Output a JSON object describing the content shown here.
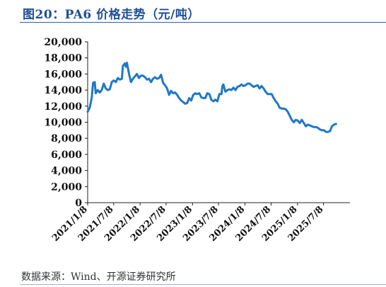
{
  "figure": {
    "title": "图20：PA6 价格走势（元/吨）",
    "source": "数据来源：Wind、开源证券研究所"
  },
  "colors": {
    "line": "#1f77c8",
    "title": "#1f4e96",
    "axis": "#222222"
  },
  "chart_data": {
    "type": "line",
    "title": "",
    "xlabel": "",
    "ylabel": "",
    "ylim": [
      0,
      20000
    ],
    "yticks": [
      0,
      2000,
      4000,
      6000,
      8000,
      10000,
      12000,
      14000,
      16000,
      18000,
      20000
    ],
    "ytick_labels": [
      "0",
      "2,000",
      "4,000",
      "6,000",
      "8,000",
      "10,000",
      "12,000",
      "14,000",
      "16,000",
      "18,000",
      "20,000"
    ],
    "x_range": [
      "2021-01-08",
      "2026-01-08"
    ],
    "xtick_labels": [
      "2021/1/8",
      "2021/7/8",
      "2022/1/8",
      "2022/7/8",
      "2023/1/8",
      "2023/7/8",
      "2024/1/8",
      "2024/7/8",
      "2025/1/8",
      "2025/7/8"
    ],
    "xtick_dates": [
      "2021-01-08",
      "2021-07-08",
      "2022-01-08",
      "2022-07-08",
      "2023-01-08",
      "2023-07-08",
      "2024-01-08",
      "2024-07-08",
      "2025-01-08",
      "2025-07-08"
    ],
    "grid": false,
    "legend": "none",
    "series": [
      {
        "points": [
          [
            "2021-01-08",
            11300
          ],
          [
            "2021-01-22",
            11800
          ],
          [
            "2021-02-05",
            13000
          ],
          [
            "2021-02-15",
            14900
          ],
          [
            "2021-02-26",
            15000
          ],
          [
            "2021-03-05",
            13600
          ],
          [
            "2021-03-19",
            14000
          ],
          [
            "2021-04-02",
            13700
          ],
          [
            "2021-04-16",
            14000
          ],
          [
            "2021-04-30",
            14800
          ],
          [
            "2021-05-14",
            14200
          ],
          [
            "2021-05-28",
            14000
          ],
          [
            "2021-06-11",
            14100
          ],
          [
            "2021-06-25",
            15000
          ],
          [
            "2021-07-09",
            15200
          ],
          [
            "2021-07-23",
            15000
          ],
          [
            "2021-08-06",
            15500
          ],
          [
            "2021-08-20",
            15300
          ],
          [
            "2021-09-03",
            15400
          ],
          [
            "2021-09-10",
            17000
          ],
          [
            "2021-09-24",
            17300
          ],
          [
            "2021-10-01",
            16900
          ],
          [
            "2021-10-08",
            17400
          ],
          [
            "2021-10-22",
            16100
          ],
          [
            "2021-11-05",
            15000
          ],
          [
            "2021-11-19",
            15400
          ],
          [
            "2021-12-03",
            15700
          ],
          [
            "2021-12-17",
            16000
          ],
          [
            "2021-12-31",
            15500
          ],
          [
            "2022-01-14",
            15800
          ],
          [
            "2022-01-28",
            15800
          ],
          [
            "2022-02-11",
            15600
          ],
          [
            "2022-02-25",
            15300
          ],
          [
            "2022-03-11",
            15400
          ],
          [
            "2022-03-25",
            15000
          ],
          [
            "2022-04-08",
            15400
          ],
          [
            "2022-04-22",
            15600
          ],
          [
            "2022-05-06",
            15400
          ],
          [
            "2022-05-20",
            15500
          ],
          [
            "2022-06-03",
            15900
          ],
          [
            "2022-06-17",
            14900
          ],
          [
            "2022-07-01",
            14600
          ],
          [
            "2022-07-15",
            14200
          ],
          [
            "2022-07-29",
            13400
          ],
          [
            "2022-08-12",
            13900
          ],
          [
            "2022-08-26",
            13600
          ],
          [
            "2022-09-09",
            13700
          ],
          [
            "2022-09-23",
            13400
          ],
          [
            "2022-10-07",
            13000
          ],
          [
            "2022-10-21",
            12700
          ],
          [
            "2022-11-04",
            12500
          ],
          [
            "2022-11-18",
            12300
          ],
          [
            "2022-12-02",
            12400
          ],
          [
            "2022-12-16",
            13000
          ],
          [
            "2022-12-30",
            12700
          ],
          [
            "2023-01-13",
            13400
          ],
          [
            "2023-01-27",
            13600
          ],
          [
            "2023-02-10",
            13500
          ],
          [
            "2023-02-24",
            13600
          ],
          [
            "2023-03-10",
            13100
          ],
          [
            "2023-03-24",
            13000
          ],
          [
            "2023-04-07",
            13000
          ],
          [
            "2023-04-21",
            13600
          ],
          [
            "2023-05-05",
            13500
          ],
          [
            "2023-05-19",
            12800
          ],
          [
            "2023-06-02",
            12600
          ],
          [
            "2023-06-16",
            12800
          ],
          [
            "2023-06-30",
            12600
          ],
          [
            "2023-07-14",
            13500
          ],
          [
            "2023-07-28",
            13500
          ],
          [
            "2023-08-04",
            14500
          ],
          [
            "2023-08-11",
            14700
          ],
          [
            "2023-08-25",
            13800
          ],
          [
            "2023-09-08",
            14000
          ],
          [
            "2023-09-22",
            14100
          ],
          [
            "2023-10-06",
            14000
          ],
          [
            "2023-10-20",
            14300
          ],
          [
            "2023-11-03",
            14000
          ],
          [
            "2023-11-17",
            14400
          ],
          [
            "2023-12-01",
            14500
          ],
          [
            "2023-12-15",
            14700
          ],
          [
            "2023-12-29",
            14500
          ],
          [
            "2024-01-12",
            14600
          ],
          [
            "2024-01-26",
            14800
          ],
          [
            "2024-02-09",
            14800
          ],
          [
            "2024-02-23",
            14600
          ],
          [
            "2024-03-08",
            14400
          ],
          [
            "2024-03-22",
            14500
          ],
          [
            "2024-04-05",
            14600
          ],
          [
            "2024-04-19",
            14200
          ],
          [
            "2024-05-03",
            14500
          ],
          [
            "2024-05-17",
            14200
          ],
          [
            "2024-05-31",
            13800
          ],
          [
            "2024-06-14",
            13500
          ],
          [
            "2024-06-28",
            13500
          ],
          [
            "2024-07-12",
            13500
          ],
          [
            "2024-07-26",
            13000
          ],
          [
            "2024-08-09",
            12600
          ],
          [
            "2024-08-23",
            12300
          ],
          [
            "2024-09-06",
            11800
          ],
          [
            "2024-09-20",
            11700
          ],
          [
            "2024-10-04",
            11700
          ],
          [
            "2024-10-18",
            11600
          ],
          [
            "2024-11-01",
            11300
          ],
          [
            "2024-11-15",
            10800
          ],
          [
            "2024-11-29",
            10300
          ],
          [
            "2024-12-13",
            10000
          ],
          [
            "2024-12-27",
            10300
          ],
          [
            "2025-01-10",
            10200
          ],
          [
            "2025-01-24",
            9900
          ],
          [
            "2025-02-07",
            10300
          ],
          [
            "2025-02-21",
            9900
          ],
          [
            "2025-03-07",
            9500
          ],
          [
            "2025-03-21",
            9700
          ],
          [
            "2025-04-04",
            9600
          ],
          [
            "2025-04-18",
            9500
          ],
          [
            "2025-05-02",
            9400
          ],
          [
            "2025-05-16",
            9400
          ],
          [
            "2025-05-30",
            9300
          ],
          [
            "2025-06-13",
            9100
          ],
          [
            "2025-06-27",
            9000
          ],
          [
            "2025-07-11",
            9000
          ],
          [
            "2025-07-25",
            8800
          ],
          [
            "2025-08-08",
            8800
          ],
          [
            "2025-08-22",
            8900
          ],
          [
            "2025-09-05",
            9500
          ],
          [
            "2025-09-19",
            9700
          ],
          [
            "2025-10-03",
            9800
          ]
        ]
      }
    ]
  }
}
